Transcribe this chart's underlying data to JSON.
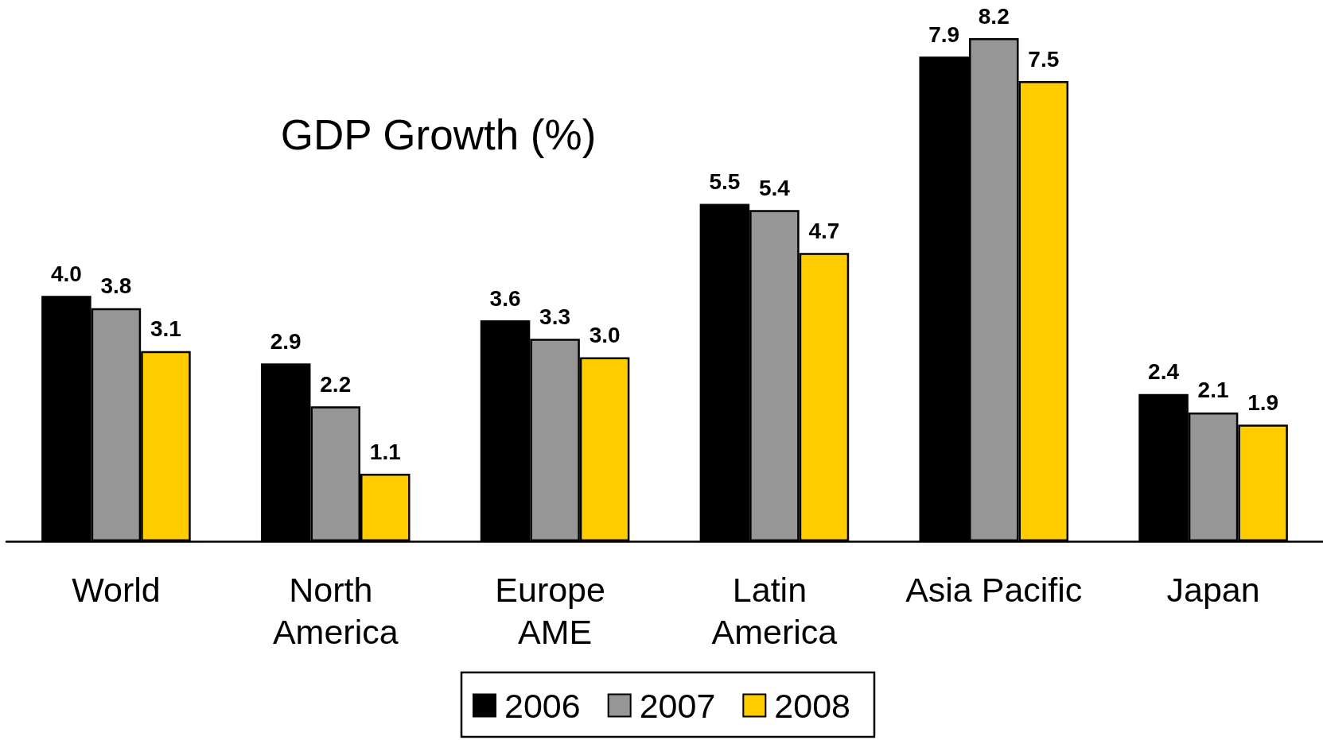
{
  "chart_data": {
    "type": "bar",
    "title": "GDP Growth (%)",
    "categories": [
      "World",
      "North America",
      "Europe AME",
      "Latin America",
      "Asia Pacific",
      "Japan"
    ],
    "series": [
      {
        "name": "2006",
        "color": "#000000",
        "values": [
          4.0,
          2.9,
          3.6,
          5.5,
          7.9,
          2.4
        ],
        "value_labels": [
          "4.0",
          "2.9",
          "3.6",
          "5.5",
          "7.9",
          "2.4"
        ]
      },
      {
        "name": "2007",
        "color": "#969696",
        "values": [
          3.8,
          2.2,
          3.3,
          5.4,
          8.2,
          2.1
        ],
        "value_labels": [
          "3.8",
          "2.2",
          "3.3",
          "5.4",
          "8.2",
          "2.1"
        ]
      },
      {
        "name": "2008",
        "color": "#ffcc00",
        "values": [
          3.1,
          1.1,
          3.0,
          4.7,
          7.5,
          1.9
        ],
        "value_labels": [
          "3.1",
          "1.1",
          "3.0",
          "4.7",
          "7.5",
          "1.9"
        ]
      }
    ],
    "legend": "bottom",
    "grid": false
  }
}
